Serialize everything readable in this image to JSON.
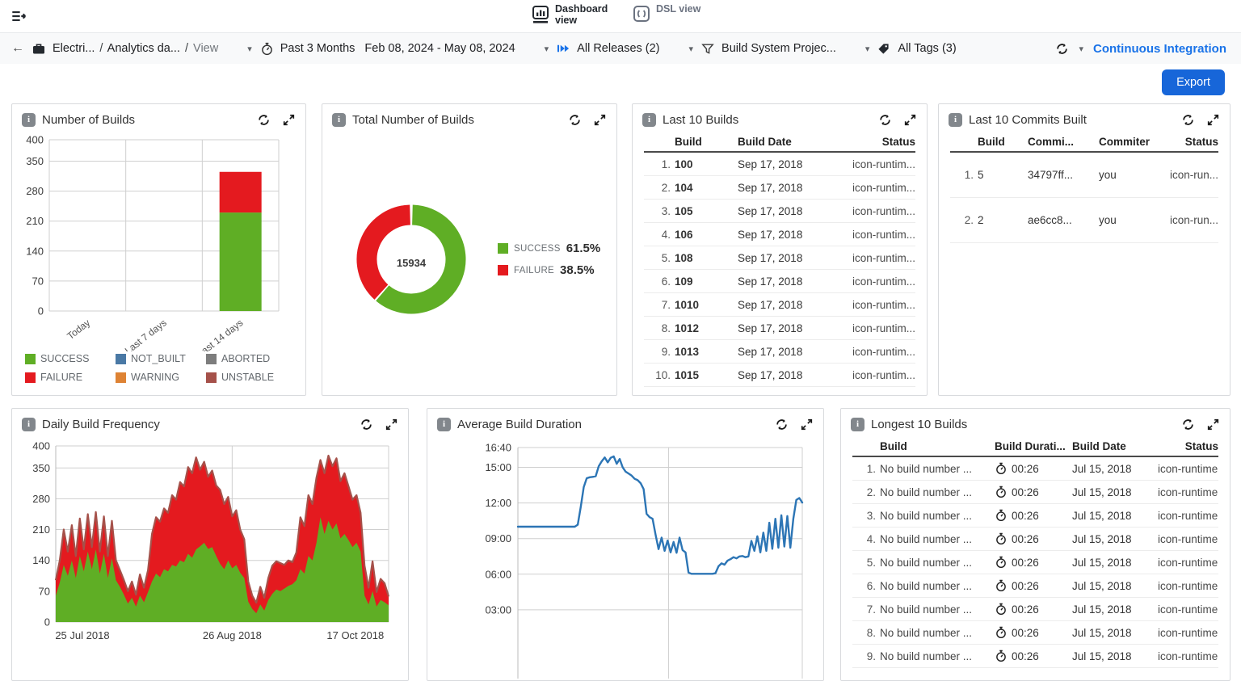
{
  "header": {
    "views": [
      {
        "label": "Dashboard view",
        "active": true
      },
      {
        "label": "DSL view",
        "active": false
      }
    ]
  },
  "filterbar": {
    "breadcrumb": {
      "project": "Electri...",
      "section": "Analytics da...",
      "page": "View"
    },
    "time_filter_label": "Past 3 Months",
    "date_range": "Feb 08, 2024 - May 08, 2024",
    "releases_filter": "All Releases (2)",
    "project_filter": "Build System Projec...",
    "tags_filter": "All Tags (3)",
    "dashboard_name": "Continuous Integration"
  },
  "toolbar": {
    "export_label": "Export"
  },
  "colors": {
    "success": "#5fae25",
    "failure": "#e41a1f",
    "not_built": "#4a79a5",
    "aborted": "#7d7d7d",
    "warning": "#de8334",
    "unstable": "#a5514a",
    "accent_blue": "#1a73e8",
    "line_blue": "#2c75b5",
    "export_blue": "#1766d9"
  },
  "widgets": {
    "number_of_builds": {
      "title": "Number of Builds"
    },
    "total_builds": {
      "title": "Total Number of Builds"
    },
    "last_builds": {
      "title": "Last 10 Builds",
      "headers": [
        "Build",
        "Build Date",
        "Status"
      ],
      "rows": [
        {
          "n": "1.",
          "build": "100",
          "date": "Sep 17, 2018",
          "status": "icon-runtim..."
        },
        {
          "n": "2.",
          "build": "104",
          "date": "Sep 17, 2018",
          "status": "icon-runtim..."
        },
        {
          "n": "3.",
          "build": "105",
          "date": "Sep 17, 2018",
          "status": "icon-runtim..."
        },
        {
          "n": "4.",
          "build": "106",
          "date": "Sep 17, 2018",
          "status": "icon-runtim..."
        },
        {
          "n": "5.",
          "build": "108",
          "date": "Sep 17, 2018",
          "status": "icon-runtim..."
        },
        {
          "n": "6.",
          "build": "109",
          "date": "Sep 17, 2018",
          "status": "icon-runtim..."
        },
        {
          "n": "7.",
          "build": "1010",
          "date": "Sep 17, 2018",
          "status": "icon-runtim..."
        },
        {
          "n": "8.",
          "build": "1012",
          "date": "Sep 17, 2018",
          "status": "icon-runtim..."
        },
        {
          "n": "9.",
          "build": "1013",
          "date": "Sep 17, 2018",
          "status": "icon-runtim..."
        },
        {
          "n": "10.",
          "build": "1015",
          "date": "Sep 17, 2018",
          "status": "icon-runtim..."
        }
      ]
    },
    "last_commits": {
      "title": "Last 10 Commits Built",
      "headers": [
        "Build",
        "Commi...",
        "Commiter",
        "Status"
      ],
      "rows": [
        {
          "n": "1.",
          "build": "5",
          "commit": "34797ff...",
          "commiter": "you",
          "status": "icon-run..."
        },
        {
          "n": "2.",
          "build": "2",
          "commit": "ae6cc8...",
          "commiter": "you",
          "status": "icon-run..."
        }
      ]
    },
    "daily_frequency": {
      "title": "Daily Build Frequency"
    },
    "avg_duration": {
      "title": "Average Build Duration"
    },
    "longest_builds": {
      "title": "Longest 10 Builds",
      "headers": [
        "Build",
        "Build Durati...",
        "Build Date",
        "Status"
      ],
      "rows": [
        {
          "n": "1.",
          "build": "No build number ...",
          "duration": "00:26",
          "date": "Jul 15, 2018",
          "status": "icon-runtime..."
        },
        {
          "n": "2.",
          "build": "No build number ...",
          "duration": "00:26",
          "date": "Jul 15, 2018",
          "status": "icon-runtime..."
        },
        {
          "n": "3.",
          "build": "No build number ...",
          "duration": "00:26",
          "date": "Jul 15, 2018",
          "status": "icon-runtime..."
        },
        {
          "n": "4.",
          "build": "No build number ...",
          "duration": "00:26",
          "date": "Jul 15, 2018",
          "status": "icon-runtime..."
        },
        {
          "n": "5.",
          "build": "No build number ...",
          "duration": "00:26",
          "date": "Jul 15, 2018",
          "status": "icon-runtime..."
        },
        {
          "n": "6.",
          "build": "No build number ...",
          "duration": "00:26",
          "date": "Jul 15, 2018",
          "status": "icon-runtime..."
        },
        {
          "n": "7.",
          "build": "No build number ...",
          "duration": "00:26",
          "date": "Jul 15, 2018",
          "status": "icon-runtime..."
        },
        {
          "n": "8.",
          "build": "No build number ...",
          "duration": "00:26",
          "date": "Jul 15, 2018",
          "status": "icon-runtime..."
        },
        {
          "n": "9.",
          "build": "No build number ...",
          "duration": "00:26",
          "date": "Jul 15, 2018",
          "status": "icon-runtime..."
        }
      ]
    }
  },
  "chart_data": [
    {
      "id": "number_of_builds",
      "type": "bar",
      "stacked": true,
      "title": "Number of Builds",
      "categories": [
        "Today",
        "Last 7 days",
        "Last 14 days"
      ],
      "series": [
        {
          "name": "SUCCESS",
          "color": "#5fae25",
          "values": [
            0,
            0,
            230
          ]
        },
        {
          "name": "FAILURE",
          "color": "#e41a1f",
          "values": [
            0,
            0,
            95
          ]
        }
      ],
      "yticks": [
        0,
        70,
        140,
        210,
        280,
        350,
        400
      ],
      "ylim": [
        0,
        400
      ],
      "legend": [
        [
          "SUCCESS",
          "#5fae25"
        ],
        [
          "NOT_BUILT",
          "#4a79a5"
        ],
        [
          "ABORTED",
          "#7d7d7d"
        ],
        [
          "FAILURE",
          "#e41a1f"
        ],
        [
          "WARNING",
          "#de8334"
        ],
        [
          "UNSTABLE",
          "#a5514a"
        ]
      ]
    },
    {
      "id": "total_builds",
      "type": "pie",
      "title": "Total Number of Builds",
      "total": "15934",
      "slices": [
        {
          "label": "SUCCESS",
          "pct": 61.5,
          "pct_label": "61.5%",
          "color": "#5fae25"
        },
        {
          "label": "FAILURE",
          "pct": 38.5,
          "pct_label": "38.5%",
          "color": "#e41a1f"
        }
      ]
    },
    {
      "id": "daily_frequency",
      "type": "area",
      "stacked": true,
      "title": "Daily Build Frequency",
      "yticks": [
        0,
        70,
        140,
        210,
        280,
        350,
        400
      ],
      "ylim": [
        0,
        400
      ],
      "xticks": [
        {
          "label": "25 Jul 2018",
          "pos": 0.08
        },
        {
          "label": "26 Aug 2018",
          "pos": 0.53
        },
        {
          "label": "17 Oct 2018",
          "pos": 0.9
        }
      ],
      "point_fields": [
        "total_builds",
        "success_builds"
      ],
      "colors": {
        "success": "#5fae25",
        "failure": "#e41a1f",
        "outline": "#a5514a"
      },
      "points": [
        [
          95,
          60
        ],
        [
          140,
          90
        ],
        [
          210,
          130
        ],
        [
          160,
          105
        ],
        [
          220,
          140
        ],
        [
          150,
          100
        ],
        [
          235,
          150
        ],
        [
          165,
          115
        ],
        [
          245,
          160
        ],
        [
          170,
          120
        ],
        [
          250,
          165
        ],
        [
          160,
          110
        ],
        [
          240,
          155
        ],
        [
          150,
          100
        ],
        [
          230,
          145
        ],
        [
          140,
          95
        ],
        [
          118,
          80
        ],
        [
          95,
          62
        ],
        [
          70,
          42
        ],
        [
          92,
          55
        ],
        [
          62,
          35
        ],
        [
          108,
          60
        ],
        [
          78,
          45
        ],
        [
          118,
          68
        ],
        [
          200,
          92
        ],
        [
          238,
          110
        ],
        [
          228,
          102
        ],
        [
          258,
          120
        ],
        [
          248,
          115
        ],
        [
          288,
          130
        ],
        [
          278,
          126
        ],
        [
          318,
          140
        ],
        [
          308,
          136
        ],
        [
          352,
          155
        ],
        [
          338,
          146
        ],
        [
          374,
          165
        ],
        [
          346,
          172
        ],
        [
          364,
          180
        ],
        [
          330,
          166
        ],
        [
          344,
          170
        ],
        [
          310,
          150
        ],
        [
          300,
          132
        ],
        [
          268,
          120
        ],
        [
          284,
          140
        ],
        [
          240,
          122
        ],
        [
          254,
          130
        ],
        [
          210,
          112
        ],
        [
          188,
          100
        ],
        [
          92,
          46
        ],
        [
          60,
          30
        ],
        [
          44,
          20
        ],
        [
          80,
          40
        ],
        [
          55,
          26
        ],
        [
          100,
          50
        ],
        [
          128,
          64
        ],
        [
          138,
          74
        ],
        [
          134,
          70
        ],
        [
          130,
          76
        ],
        [
          140,
          82
        ],
        [
          136,
          86
        ],
        [
          158,
          95
        ],
        [
          238,
          120
        ],
        [
          218,
          110
        ],
        [
          288,
          150
        ],
        [
          268,
          140
        ],
        [
          328,
          180
        ],
        [
          368,
          238
        ],
        [
          338,
          200
        ],
        [
          378,
          230
        ],
        [
          354,
          210
        ],
        [
          372,
          224
        ],
        [
          320,
          190
        ],
        [
          338,
          200
        ],
        [
          308,
          186
        ],
        [
          278,
          170
        ],
        [
          288,
          180
        ],
        [
          248,
          160
        ],
        [
          128,
          60
        ],
        [
          78,
          40
        ],
        [
          138,
          70
        ],
        [
          68,
          35
        ],
        [
          98,
          50
        ],
        [
          88,
          45
        ],
        [
          58,
          38
        ]
      ]
    },
    {
      "id": "avg_duration",
      "type": "line",
      "title": "Average Build Duration",
      "line_color": "#2c75b5",
      "yticks": [
        {
          "label": "16:40",
          "sec": 1000
        },
        {
          "label": "15:00",
          "sec": 900
        },
        {
          "label": "12:00",
          "sec": 720
        },
        {
          "label": "09:00",
          "sec": 540
        },
        {
          "label": "06:00",
          "sec": 360
        },
        {
          "label": "03:00",
          "sec": 180
        }
      ],
      "values_sec": [
        600,
        600,
        600,
        600,
        600,
        600,
        600,
        600,
        600,
        600,
        600,
        600,
        600,
        600,
        600,
        600,
        600,
        600,
        600,
        600,
        610,
        700,
        800,
        845,
        850,
        852,
        855,
        905,
        930,
        950,
        925,
        948,
        955,
        918,
        942,
        900,
        878,
        868,
        858,
        842,
        835,
        820,
        790,
        665,
        648,
        640,
        560,
        487,
        545,
        478,
        530,
        470,
        523,
        468,
        545,
        482,
        470,
        368,
        362,
        362,
        362,
        362,
        362,
        362,
        362,
        362,
        365,
        400,
        415,
        408,
        428,
        436,
        446,
        440,
        450,
        452,
        446,
        450,
        528,
        478,
        552,
        470,
        570,
        478,
        620,
        488,
        640,
        494,
        658,
        500,
        654,
        494,
        640,
        735,
        745,
        722
      ]
    }
  ]
}
